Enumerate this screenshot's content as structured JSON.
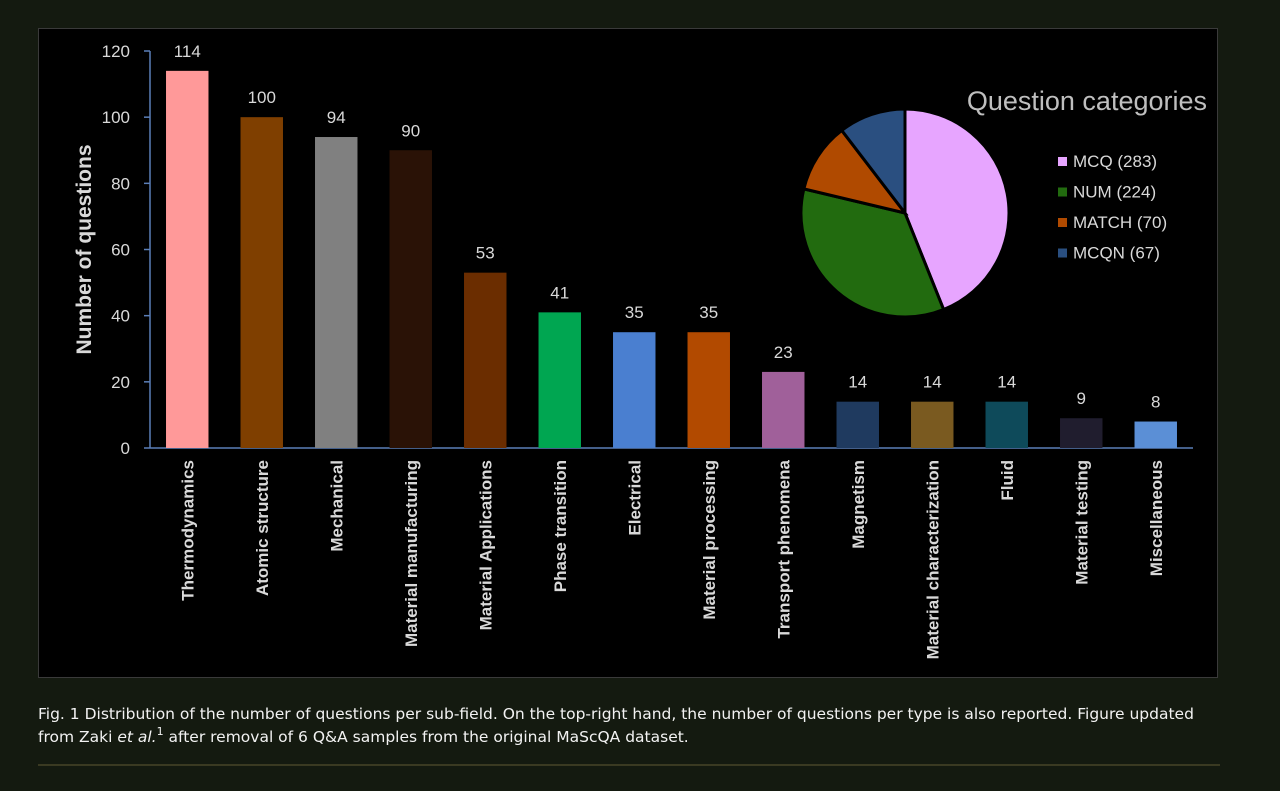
{
  "chart_data": [
    {
      "type": "bar",
      "ylabel": "Number of questions",
      "ylim": [
        0,
        120
      ],
      "yticks": [
        0,
        20,
        40,
        60,
        80,
        100,
        120
      ],
      "categories": [
        "Thermodynamics",
        "Atomic structure",
        "Mechanical",
        "Material manufacturing",
        "Material Applications",
        "Phase transition",
        "Electrical",
        "Material processing",
        "Transport phenomena",
        "Magnetism",
        "Material characterization",
        "Fluid",
        "Material testing",
        "Miscellaneous"
      ],
      "values": [
        114,
        100,
        94,
        90,
        53,
        41,
        35,
        35,
        23,
        14,
        14,
        14,
        9,
        8
      ],
      "colors": [
        "#ff9999",
        "#7f3f00",
        "#808080",
        "#2a1206",
        "#6b2d00",
        "#00a651",
        "#4a7fd0",
        "#b24a00",
        "#a0609a",
        "#1f3a5f",
        "#7a5a20",
        "#0e4a5a",
        "#201d2e",
        "#5b8fd6"
      ],
      "data_labels": true,
      "grid": false
    },
    {
      "type": "pie",
      "title": "Question categories",
      "labels": [
        "MCQ (283)",
        "NUM (224)",
        "MATCH (70)",
        "MCQN (67)"
      ],
      "values": [
        283,
        224,
        70,
        67
      ],
      "colors": [
        "#e7a5ff",
        "#226b0f",
        "#b04a00",
        "#2a4f80"
      ],
      "legend_position": "right"
    }
  ],
  "caption": {
    "part1": "Fig.  1 Distribution of the number of questions per sub-field.  On the top-right hand, the number of questions per type is also reported. Figure updated from Zaki ",
    "etal": "et al.",
    "ref": "1",
    "part2": " after removal of 6 Q&A samples from the original MaScQA dataset."
  }
}
